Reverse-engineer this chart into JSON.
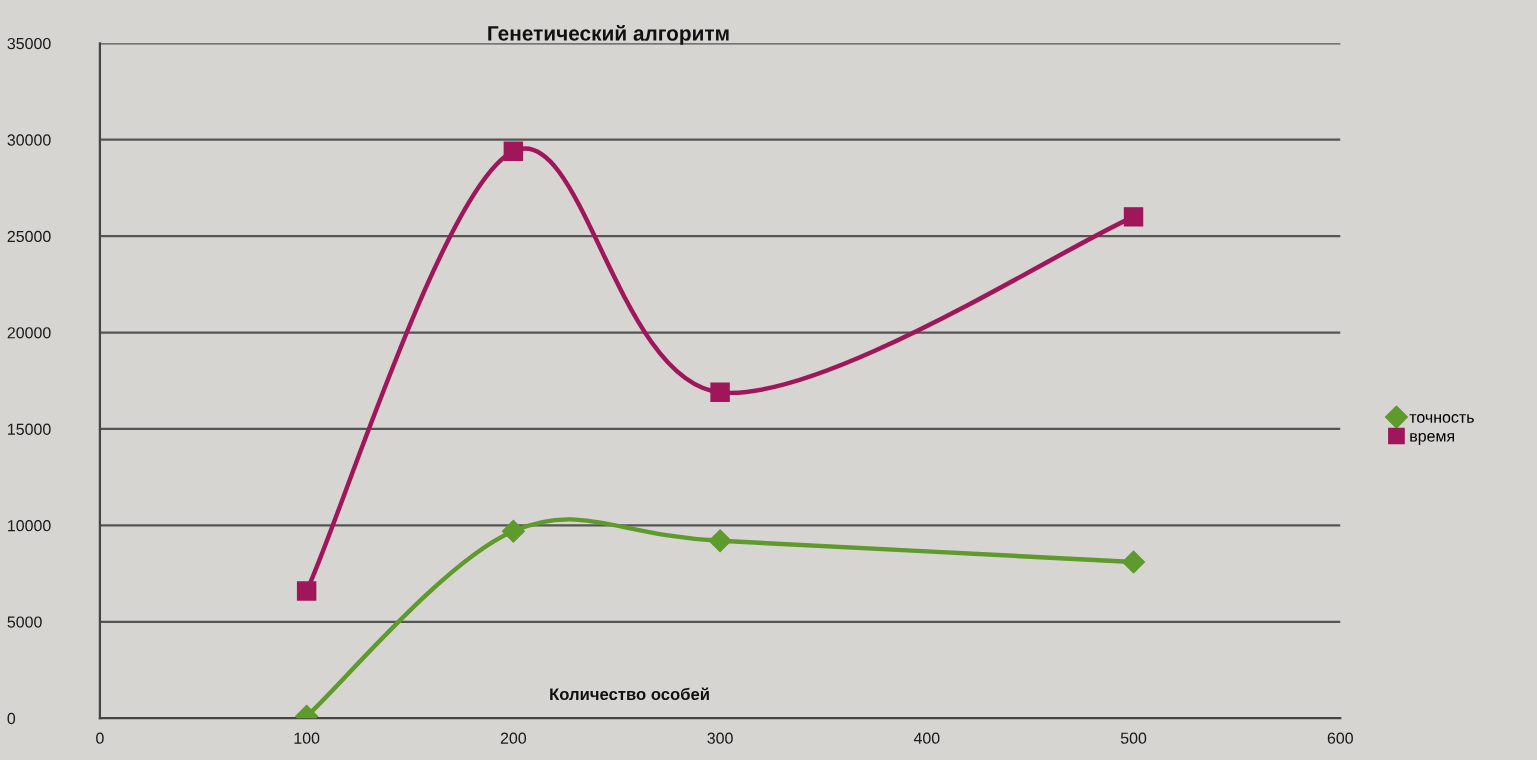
{
  "chart_data": {
    "type": "line",
    "title": "Генетический алгоритм",
    "xlabel": "Количество особей",
    "x": [
      100,
      200,
      300,
      500
    ],
    "series": [
      {
        "name": "точность",
        "color": "#5e9a2c",
        "marker": "diamond",
        "values": [
          100,
          9700,
          9200,
          8100
        ]
      },
      {
        "name": "время",
        "color": "#a0165a",
        "marker": "square",
        "values": [
          6600,
          29400,
          16900,
          26000
        ]
      }
    ],
    "xlim": [
      0,
      600
    ],
    "xticks": [
      0,
      100,
      200,
      300,
      400,
      500,
      600
    ],
    "ylim": [
      0,
      35000
    ],
    "yticks": [
      0,
      5000,
      10000,
      15000,
      20000,
      25000,
      30000,
      35000
    ],
    "grid": "y",
    "legend": "right",
    "line_style": "solid"
  }
}
